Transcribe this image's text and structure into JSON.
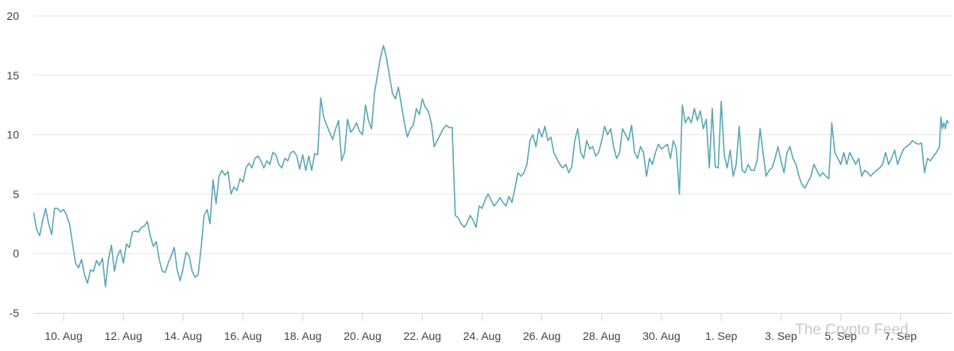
{
  "watermark": "The Crypto Feed",
  "colors": {
    "line": "#5aa7b4",
    "grid": "#e6e6e6",
    "axis": "#ccd6eb",
    "text": "#444444"
  },
  "chart_data": {
    "type": "line",
    "title": "",
    "xlabel": "",
    "ylabel": "",
    "ylim": [
      -5,
      20
    ],
    "yticks": [
      -5,
      0,
      5,
      10,
      15,
      20
    ],
    "xlim_day": [
      9.0,
      39.6
    ],
    "xticks": [
      {
        "label": "10. Aug",
        "day": 10
      },
      {
        "label": "12. Aug",
        "day": 12
      },
      {
        "label": "14. Aug",
        "day": 14
      },
      {
        "label": "16. Aug",
        "day": 16
      },
      {
        "label": "18. Aug",
        "day": 18
      },
      {
        "label": "20. Aug",
        "day": 20
      },
      {
        "label": "22. Aug",
        "day": 22
      },
      {
        "label": "24. Aug",
        "day": 24
      },
      {
        "label": "26. Aug",
        "day": 26
      },
      {
        "label": "28. Aug",
        "day": 28
      },
      {
        "label": "30. Aug",
        "day": 30
      },
      {
        "label": "1. Sep",
        "day": 32
      },
      {
        "label": "3. Sep",
        "day": 34
      },
      {
        "label": "5. Sep",
        "day": 36
      },
      {
        "label": "7. Sep",
        "day": 38
      }
    ],
    "grid": true,
    "series": [
      {
        "name": "",
        "color": "#5aa7b4",
        "points": [
          [
            9.0,
            3.4
          ],
          [
            9.1,
            2.0
          ],
          [
            9.2,
            1.5
          ],
          [
            9.3,
            2.8
          ],
          [
            9.4,
            3.8
          ],
          [
            9.5,
            2.5
          ],
          [
            9.6,
            1.6
          ],
          [
            9.7,
            3.8
          ],
          [
            9.8,
            3.8
          ],
          [
            9.9,
            3.5
          ],
          [
            10.0,
            3.7
          ],
          [
            10.1,
            3.2
          ],
          [
            10.2,
            2.5
          ],
          [
            10.3,
            0.8
          ],
          [
            10.4,
            -0.8
          ],
          [
            10.5,
            -1.2
          ],
          [
            10.6,
            -0.5
          ],
          [
            10.7,
            -1.8
          ],
          [
            10.8,
            -2.5
          ],
          [
            10.9,
            -1.4
          ],
          [
            11.0,
            -1.5
          ],
          [
            11.1,
            -0.6
          ],
          [
            11.2,
            -1.0
          ],
          [
            11.3,
            -0.4
          ],
          [
            11.4,
            -2.8
          ],
          [
            11.5,
            -0.5
          ],
          [
            11.6,
            0.7
          ],
          [
            11.7,
            -1.5
          ],
          [
            11.8,
            -0.2
          ],
          [
            11.9,
            0.3
          ],
          [
            12.0,
            -0.8
          ],
          [
            12.1,
            0.8
          ],
          [
            12.2,
            0.5
          ],
          [
            12.3,
            1.8
          ],
          [
            12.4,
            1.9
          ],
          [
            12.5,
            1.8
          ],
          [
            12.6,
            2.2
          ],
          [
            12.7,
            2.3
          ],
          [
            12.8,
            2.7
          ],
          [
            12.9,
            1.5
          ],
          [
            13.0,
            0.6
          ],
          [
            13.1,
            1.0
          ],
          [
            13.2,
            -0.5
          ],
          [
            13.3,
            -1.5
          ],
          [
            13.4,
            -1.6
          ],
          [
            13.5,
            -0.8
          ],
          [
            13.6,
            -0.2
          ],
          [
            13.7,
            0.5
          ],
          [
            13.8,
            -1.4
          ],
          [
            13.9,
            -2.3
          ],
          [
            14.0,
            -1.2
          ],
          [
            14.1,
            0.1
          ],
          [
            14.2,
            -0.2
          ],
          [
            14.3,
            -1.5
          ],
          [
            14.4,
            -2.0
          ],
          [
            14.5,
            -1.8
          ],
          [
            14.6,
            0.5
          ],
          [
            14.7,
            3.2
          ],
          [
            14.8,
            3.7
          ],
          [
            14.9,
            2.5
          ],
          [
            15.0,
            6.2
          ],
          [
            15.1,
            4.2
          ],
          [
            15.2,
            6.5
          ],
          [
            15.3,
            7.0
          ],
          [
            15.4,
            6.6
          ],
          [
            15.5,
            6.9
          ],
          [
            15.6,
            5.0
          ],
          [
            15.7,
            5.6
          ],
          [
            15.8,
            5.3
          ],
          [
            15.9,
            6.3
          ],
          [
            16.0,
            6.0
          ],
          [
            16.1,
            7.2
          ],
          [
            16.2,
            7.6
          ],
          [
            16.3,
            7.2
          ],
          [
            16.4,
            8.0
          ],
          [
            16.5,
            8.2
          ],
          [
            16.6,
            7.8
          ],
          [
            16.7,
            7.2
          ],
          [
            16.8,
            7.8
          ],
          [
            16.9,
            7.5
          ],
          [
            17.0,
            8.5
          ],
          [
            17.1,
            8.3
          ],
          [
            17.2,
            7.5
          ],
          [
            17.3,
            7.2
          ],
          [
            17.4,
            8.0
          ],
          [
            17.5,
            7.8
          ],
          [
            17.6,
            8.5
          ],
          [
            17.7,
            8.6
          ],
          [
            17.8,
            8.2
          ],
          [
            17.9,
            7.1
          ],
          [
            18.0,
            8.3
          ],
          [
            18.1,
            7.0
          ],
          [
            18.2,
            8.2
          ],
          [
            18.3,
            7.0
          ],
          [
            18.4,
            8.4
          ],
          [
            18.5,
            8.3
          ],
          [
            18.6,
            13.1
          ],
          [
            18.7,
            11.5
          ],
          [
            18.8,
            10.8
          ],
          [
            18.9,
            10.2
          ],
          [
            19.0,
            9.6
          ],
          [
            19.1,
            10.5
          ],
          [
            19.2,
            11.2
          ],
          [
            19.3,
            7.8
          ],
          [
            19.4,
            8.5
          ],
          [
            19.5,
            11.3
          ],
          [
            19.6,
            10.2
          ],
          [
            19.7,
            10.5
          ],
          [
            19.8,
            11.0
          ],
          [
            19.9,
            10.3
          ],
          [
            20.0,
            10.0
          ],
          [
            20.1,
            12.5
          ],
          [
            20.2,
            11.2
          ],
          [
            20.3,
            10.5
          ],
          [
            20.4,
            13.5
          ],
          [
            20.5,
            15.0
          ],
          [
            20.6,
            16.5
          ],
          [
            20.7,
            17.5
          ],
          [
            20.8,
            16.5
          ],
          [
            20.9,
            15.0
          ],
          [
            21.0,
            13.5
          ],
          [
            21.1,
            13.0
          ],
          [
            21.2,
            14.0
          ],
          [
            21.3,
            12.5
          ],
          [
            21.4,
            11.0
          ],
          [
            21.5,
            9.8
          ],
          [
            21.6,
            10.5
          ],
          [
            21.7,
            10.8
          ],
          [
            21.8,
            12.2
          ],
          [
            21.9,
            11.7
          ],
          [
            22.0,
            13.0
          ],
          [
            22.1,
            12.3
          ],
          [
            22.2,
            12.0
          ],
          [
            22.3,
            11.0
          ],
          [
            22.4,
            9.0
          ],
          [
            22.5,
            9.5
          ],
          [
            22.6,
            10.0
          ],
          [
            22.7,
            10.5
          ],
          [
            22.8,
            10.8
          ],
          [
            22.9,
            10.6
          ],
          [
            23.0,
            10.6
          ],
          [
            23.1,
            3.2
          ],
          [
            23.2,
            3.0
          ],
          [
            23.3,
            2.5
          ],
          [
            23.4,
            2.2
          ],
          [
            23.5,
            2.6
          ],
          [
            23.6,
            3.2
          ],
          [
            23.7,
            2.8
          ],
          [
            23.8,
            2.2
          ],
          [
            23.9,
            4.0
          ],
          [
            24.0,
            3.8
          ],
          [
            24.1,
            4.5
          ],
          [
            24.2,
            5.0
          ],
          [
            24.3,
            4.5
          ],
          [
            24.4,
            4.0
          ],
          [
            24.5,
            4.3
          ],
          [
            24.6,
            4.7
          ],
          [
            24.7,
            4.3
          ],
          [
            24.8,
            4.0
          ],
          [
            24.9,
            4.8
          ],
          [
            25.0,
            4.3
          ],
          [
            25.1,
            5.5
          ],
          [
            25.2,
            6.8
          ],
          [
            25.3,
            6.5
          ],
          [
            25.4,
            6.8
          ],
          [
            25.5,
            7.5
          ],
          [
            25.6,
            9.5
          ],
          [
            25.7,
            10.0
          ],
          [
            25.8,
            9.0
          ],
          [
            25.9,
            10.5
          ],
          [
            26.0,
            9.8
          ],
          [
            26.1,
            10.7
          ],
          [
            26.2,
            9.5
          ],
          [
            26.3,
            9.8
          ],
          [
            26.4,
            8.5
          ],
          [
            26.5,
            8.0
          ],
          [
            26.6,
            7.5
          ],
          [
            26.7,
            7.2
          ],
          [
            26.8,
            7.5
          ],
          [
            26.9,
            6.8
          ],
          [
            27.0,
            7.3
          ],
          [
            27.1,
            9.5
          ],
          [
            27.2,
            10.5
          ],
          [
            27.3,
            8.5
          ],
          [
            27.4,
            8.0
          ],
          [
            27.5,
            9.5
          ],
          [
            27.6,
            8.8
          ],
          [
            27.7,
            9.0
          ],
          [
            27.8,
            8.2
          ],
          [
            27.9,
            8.5
          ],
          [
            28.0,
            9.5
          ],
          [
            28.1,
            10.7
          ],
          [
            28.2,
            10.0
          ],
          [
            28.3,
            10.5
          ],
          [
            28.4,
            9.0
          ],
          [
            28.5,
            8.0
          ],
          [
            28.6,
            8.5
          ],
          [
            28.7,
            10.5
          ],
          [
            28.8,
            10.0
          ],
          [
            28.9,
            9.5
          ],
          [
            29.0,
            10.8
          ],
          [
            29.1,
            8.5
          ],
          [
            29.2,
            8.0
          ],
          [
            29.3,
            9.0
          ],
          [
            29.4,
            8.5
          ],
          [
            29.5,
            6.5
          ],
          [
            29.6,
            8.0
          ],
          [
            29.7,
            7.5
          ],
          [
            29.8,
            8.5
          ],
          [
            29.9,
            9.2
          ],
          [
            30.0,
            8.8
          ],
          [
            30.1,
            9.0
          ],
          [
            30.2,
            9.2
          ],
          [
            30.3,
            8.0
          ],
          [
            30.4,
            9.5
          ],
          [
            30.5,
            8.8
          ],
          [
            30.6,
            5.0
          ],
          [
            30.7,
            12.5
          ],
          [
            30.8,
            11.0
          ],
          [
            30.9,
            11.5
          ],
          [
            31.0,
            11.0
          ],
          [
            31.1,
            12.2
          ],
          [
            31.2,
            11.2
          ],
          [
            31.3,
            12.0
          ],
          [
            31.4,
            10.5
          ],
          [
            31.5,
            11.3
          ],
          [
            31.6,
            7.2
          ],
          [
            31.7,
            12.2
          ],
          [
            31.8,
            7.3
          ],
          [
            31.9,
            7.2
          ],
          [
            32.0,
            12.8
          ],
          [
            32.1,
            8.3
          ],
          [
            32.2,
            7.2
          ],
          [
            32.3,
            8.7
          ],
          [
            32.4,
            6.5
          ],
          [
            32.5,
            7.5
          ],
          [
            32.6,
            10.7
          ],
          [
            32.7,
            7.0
          ],
          [
            32.8,
            6.8
          ],
          [
            32.9,
            7.5
          ],
          [
            33.0,
            7.0
          ],
          [
            33.1,
            7.0
          ],
          [
            33.2,
            7.8
          ],
          [
            33.3,
            10.5
          ],
          [
            33.4,
            8.5
          ],
          [
            33.5,
            6.5
          ],
          [
            33.6,
            7.0
          ],
          [
            33.7,
            7.2
          ],
          [
            33.8,
            8.0
          ],
          [
            33.9,
            9.0
          ],
          [
            34.0,
            7.8
          ],
          [
            34.1,
            6.8
          ],
          [
            34.2,
            8.5
          ],
          [
            34.3,
            9.0
          ],
          [
            34.4,
            8.0
          ],
          [
            34.5,
            7.5
          ],
          [
            34.6,
            6.5
          ],
          [
            34.7,
            5.8
          ],
          [
            34.8,
            5.5
          ],
          [
            34.9,
            6.0
          ],
          [
            35.0,
            6.5
          ],
          [
            35.1,
            7.5
          ],
          [
            35.2,
            7.0
          ],
          [
            35.3,
            6.5
          ],
          [
            35.4,
            6.8
          ],
          [
            35.5,
            6.5
          ],
          [
            35.6,
            6.3
          ],
          [
            35.7,
            11.0
          ],
          [
            35.8,
            8.5
          ],
          [
            35.9,
            8.0
          ],
          [
            36.0,
            7.5
          ],
          [
            36.1,
            8.5
          ],
          [
            36.2,
            7.5
          ],
          [
            36.3,
            8.5
          ],
          [
            36.4,
            8.0
          ],
          [
            36.5,
            7.5
          ],
          [
            36.6,
            8.0
          ],
          [
            36.7,
            6.5
          ],
          [
            36.8,
            7.0
          ],
          [
            36.9,
            6.8
          ],
          [
            37.0,
            6.5
          ],
          [
            37.1,
            6.8
          ],
          [
            37.2,
            7.0
          ],
          [
            37.3,
            7.2
          ],
          [
            37.4,
            7.5
          ],
          [
            37.5,
            8.5
          ],
          [
            37.6,
            7.5
          ],
          [
            37.7,
            8.0
          ],
          [
            37.8,
            8.7
          ],
          [
            37.9,
            7.5
          ],
          [
            38.0,
            8.2
          ],
          [
            38.1,
            8.8
          ],
          [
            38.2,
            9.0
          ],
          [
            38.3,
            9.2
          ],
          [
            38.4,
            9.5
          ],
          [
            38.5,
            9.3
          ],
          [
            38.6,
            9.2
          ],
          [
            38.7,
            9.3
          ],
          [
            38.8,
            6.8
          ],
          [
            38.9,
            8.0
          ],
          [
            39.0,
            7.8
          ],
          [
            39.1,
            8.2
          ],
          [
            39.2,
            8.5
          ],
          [
            39.3,
            9.0
          ],
          [
            39.35,
            11.5
          ],
          [
            39.4,
            10.5
          ],
          [
            39.45,
            11.0
          ],
          [
            39.5,
            10.5
          ],
          [
            39.55,
            11.2
          ],
          [
            39.6,
            11.0
          ]
        ]
      }
    ]
  }
}
